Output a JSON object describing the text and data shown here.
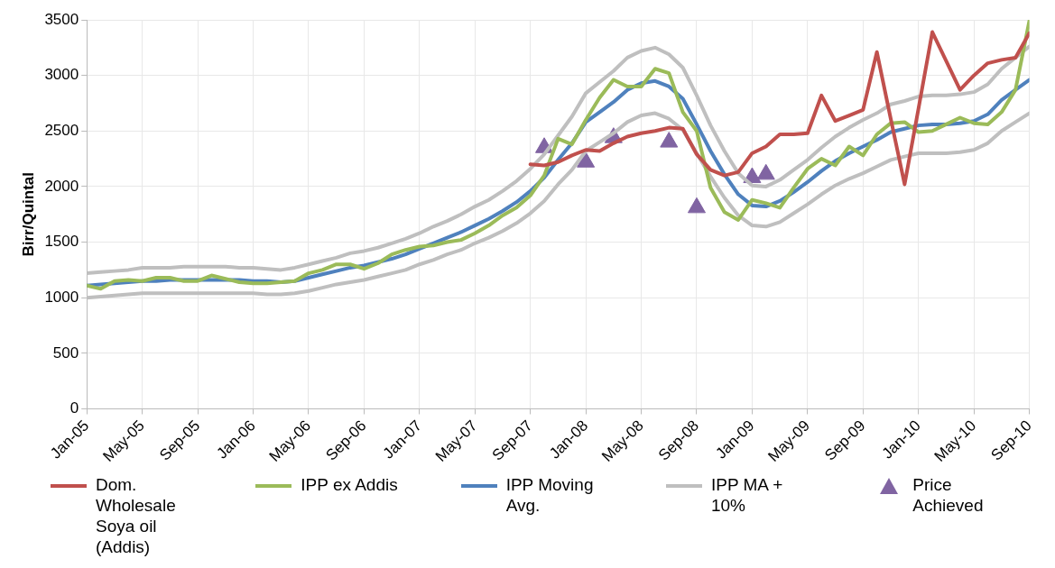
{
  "chart_data": {
    "type": "line",
    "ylabel": "Birr/Quintal",
    "x": [
      "2005-01",
      "2005-02",
      "2005-03",
      "2005-04",
      "2005-05",
      "2005-06",
      "2005-07",
      "2005-08",
      "2005-09",
      "2005-10",
      "2005-11",
      "2005-12",
      "2006-01",
      "2006-02",
      "2006-03",
      "2006-04",
      "2006-05",
      "2006-06",
      "2006-07",
      "2006-08",
      "2006-09",
      "2006-10",
      "2006-11",
      "2006-12",
      "2007-01",
      "2007-02",
      "2007-03",
      "2007-04",
      "2007-05",
      "2007-06",
      "2007-07",
      "2007-08",
      "2007-09",
      "2007-10",
      "2007-11",
      "2007-12",
      "2008-01",
      "2008-02",
      "2008-03",
      "2008-04",
      "2008-05",
      "2008-06",
      "2008-07",
      "2008-08",
      "2008-09",
      "2008-10",
      "2008-11",
      "2008-12",
      "2009-01",
      "2009-02",
      "2009-03",
      "2009-04",
      "2009-05",
      "2009-06",
      "2009-07",
      "2009-08",
      "2009-09",
      "2009-10",
      "2009-11",
      "2009-12",
      "2010-01",
      "2010-02",
      "2010-03",
      "2010-04",
      "2010-05",
      "2010-06",
      "2010-07",
      "2010-08",
      "2010-09"
    ],
    "xlim": [
      "2005-01",
      "2010-09"
    ],
    "xticks": [
      {
        "value": "2005-01",
        "label": "Jan-05"
      },
      {
        "value": "2005-05",
        "label": "May-05"
      },
      {
        "value": "2005-09",
        "label": "Sep-05"
      },
      {
        "value": "2006-01",
        "label": "Jan-06"
      },
      {
        "value": "2006-05",
        "label": "May-06"
      },
      {
        "value": "2006-09",
        "label": "Sep-06"
      },
      {
        "value": "2007-01",
        "label": "Jan-07"
      },
      {
        "value": "2007-05",
        "label": "May-07"
      },
      {
        "value": "2007-09",
        "label": "Sep-07"
      },
      {
        "value": "2008-01",
        "label": "Jan-08"
      },
      {
        "value": "2008-05",
        "label": "May-08"
      },
      {
        "value": "2008-09",
        "label": "Sep-08"
      },
      {
        "value": "2009-01",
        "label": "Jan-09"
      },
      {
        "value": "2009-05",
        "label": "May-09"
      },
      {
        "value": "2009-09",
        "label": "Sep-09"
      },
      {
        "value": "2010-01",
        "label": "Jan-10"
      },
      {
        "value": "2010-05",
        "label": "May-10"
      },
      {
        "value": "2010-09",
        "label": "Sep-10"
      }
    ],
    "ylim": [
      0,
      3500
    ],
    "yticks": [
      0,
      500,
      1000,
      1500,
      2000,
      2500,
      3000,
      3500
    ],
    "grid": true,
    "legend": "bottom",
    "marker": "none",
    "line_style": "solid",
    "series": [
      {
        "name": "Dom. Wholesale Soya oil (Addis)",
        "color": "#c0504d",
        "values": [
          null,
          null,
          null,
          null,
          null,
          null,
          null,
          null,
          null,
          null,
          null,
          null,
          null,
          null,
          null,
          null,
          null,
          null,
          null,
          null,
          null,
          null,
          null,
          null,
          null,
          null,
          null,
          null,
          null,
          null,
          null,
          null,
          2200,
          2190,
          2220,
          2280,
          2330,
          2320,
          2390,
          2450,
          2480,
          2500,
          2530,
          2520,
          2290,
          2150,
          2100,
          2130,
          2300,
          2360,
          2470,
          2470,
          2480,
          2820,
          2590,
          2640,
          2690,
          3210,
          2610,
          2020,
          2700,
          3390,
          3130,
          2870,
          3000,
          3110,
          3140,
          3160,
          3380
        ]
      },
      {
        "name": "IPP ex Addis",
        "color": "#9bbb59",
        "values": [
          1110,
          1080,
          1150,
          1160,
          1150,
          1180,
          1180,
          1150,
          1150,
          1200,
          1170,
          1140,
          1130,
          1130,
          1140,
          1150,
          1220,
          1250,
          1300,
          1300,
          1260,
          1310,
          1390,
          1430,
          1460,
          1470,
          1500,
          1520,
          1580,
          1650,
          1740,
          1810,
          1920,
          2100,
          2430,
          2380,
          2600,
          2800,
          2960,
          2900,
          2900,
          3060,
          3020,
          2670,
          2500,
          1990,
          1770,
          1700,
          1880,
          1850,
          1810,
          1990,
          2160,
          2250,
          2190,
          2360,
          2280,
          2470,
          2570,
          2580,
          2490,
          2500,
          2560,
          2620,
          2570,
          2560,
          2670,
          2870,
          3490
        ]
      },
      {
        "name": "IPP Moving Avg.",
        "color": "#4f81bd",
        "values": [
          1110,
          1120,
          1130,
          1140,
          1150,
          1150,
          1160,
          1160,
          1160,
          1160,
          1160,
          1160,
          1150,
          1150,
          1140,
          1150,
          1180,
          1210,
          1240,
          1270,
          1290,
          1320,
          1350,
          1390,
          1440,
          1490,
          1540,
          1590,
          1650,
          1710,
          1780,
          1860,
          1960,
          2080,
          2240,
          2390,
          2580,
          2670,
          2760,
          2870,
          2930,
          2950,
          2900,
          2790,
          2560,
          2320,
          2110,
          1930,
          1830,
          1820,
          1870,
          1950,
          2040,
          2140,
          2230,
          2300,
          2360,
          2420,
          2490,
          2520,
          2550,
          2560,
          2560,
          2570,
          2590,
          2650,
          2780,
          2870,
          2960
        ]
      },
      {
        "name": "IPP MA + 10%",
        "color": "#bfbfbf",
        "values": [
          1220,
          1230,
          1240,
          1250,
          1270,
          1270,
          1270,
          1280,
          1280,
          1280,
          1280,
          1270,
          1270,
          1260,
          1250,
          1270,
          1300,
          1330,
          1360,
          1400,
          1420,
          1450,
          1490,
          1530,
          1580,
          1640,
          1690,
          1750,
          1820,
          1880,
          1960,
          2050,
          2160,
          2290,
          2460,
          2630,
          2840,
          2940,
          3040,
          3160,
          3220,
          3250,
          3190,
          3070,
          2820,
          2550,
          2320,
          2120,
          2010,
          2000,
          2060,
          2150,
          2240,
          2350,
          2450,
          2530,
          2600,
          2660,
          2740,
          2770,
          2810,
          2820,
          2820,
          2830,
          2850,
          2920,
          3060,
          3160,
          3260
        ]
      },
      {
        "color": "#bfbfbf",
        "values": [
          1000,
          1010,
          1020,
          1030,
          1040,
          1040,
          1040,
          1040,
          1040,
          1040,
          1040,
          1040,
          1040,
          1030,
          1030,
          1040,
          1060,
          1090,
          1120,
          1140,
          1160,
          1190,
          1220,
          1250,
          1300,
          1340,
          1390,
          1430,
          1490,
          1540,
          1600,
          1670,
          1760,
          1870,
          2020,
          2150,
          2320,
          2400,
          2480,
          2580,
          2640,
          2660,
          2610,
          2510,
          2300,
          2090,
          1900,
          1740,
          1650,
          1640,
          1680,
          1760,
          1840,
          1930,
          2010,
          2070,
          2120,
          2180,
          2240,
          2270,
          2300,
          2300,
          2300,
          2310,
          2330,
          2390,
          2500,
          2580,
          2660
        ]
      },
      {
        "name": "Price Achieved",
        "type": "scatter",
        "marker": "triangle",
        "color": "#8064a2",
        "x": [
          "2007-10",
          "2008-01",
          "2008-03",
          "2008-07",
          "2008-09",
          "2009-01",
          "2009-02"
        ],
        "values": [
          2350,
          2220,
          2440,
          2400,
          1810,
          2080,
          2110
        ]
      }
    ]
  }
}
